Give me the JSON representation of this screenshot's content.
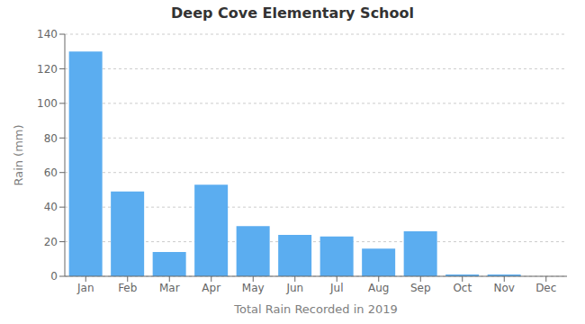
{
  "chart_data": {
    "type": "bar",
    "title": "Deep Cove Elementary School",
    "xlabel": "Total Rain Recorded in 2019",
    "ylabel": "Rain (mm)",
    "categories": [
      "Jan",
      "Feb",
      "Mar",
      "Apr",
      "May",
      "Jun",
      "Jul",
      "Aug",
      "Sep",
      "Oct",
      "Nov",
      "Dec"
    ],
    "values": [
      130,
      49,
      14,
      53,
      29,
      24,
      23,
      16,
      26,
      1,
      1,
      0
    ],
    "color": "#5BADF0",
    "ylim": [
      0,
      140
    ],
    "yticks": [
      0,
      20,
      40,
      60,
      80,
      100,
      120,
      140
    ],
    "grid": true
  }
}
